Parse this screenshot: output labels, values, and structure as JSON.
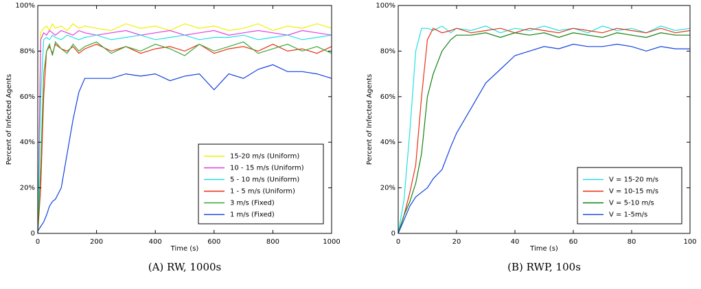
{
  "chart_data": [
    {
      "type": "line",
      "caption": "(A) RW, 1000s",
      "xlabel": "Time (s)",
      "ylabel": "Percent of Infected Agents",
      "xlim": [
        0,
        1000
      ],
      "ylim": [
        0,
        100
      ],
      "xticks": [
        0,
        200,
        400,
        600,
        800,
        1000
      ],
      "yticks": [
        0,
        {
          "value": 20,
          "label": "20%"
        },
        {
          "value": 40,
          "label": "40%"
        },
        {
          "value": 60,
          "label": "60%"
        },
        {
          "value": 80,
          "label": "80%"
        },
        {
          "value": 100,
          "label": "100%"
        }
      ],
      "legend": "lower right",
      "x": [
        0,
        10,
        20,
        30,
        40,
        50,
        60,
        80,
        100,
        120,
        140,
        160,
        200,
        250,
        300,
        350,
        400,
        450,
        500,
        550,
        600,
        650,
        700,
        750,
        800,
        850,
        900,
        950,
        1000
      ],
      "series": [
        {
          "name": "15-20 m/s (Uniform)",
          "color": "#f0f000",
          "values": [
            0,
            88,
            90,
            91,
            89,
            92,
            90,
            91,
            89,
            92,
            90,
            91,
            90,
            89,
            92,
            90,
            91,
            89,
            92,
            90,
            91,
            89,
            90,
            92,
            89,
            91,
            90,
            92,
            90
          ]
        },
        {
          "name": "10 - 15 m/s (Uniform)",
          "color": "#e040e0",
          "values": [
            0,
            85,
            88,
            87,
            89,
            88,
            87,
            89,
            88,
            87,
            89,
            88,
            87,
            88,
            89,
            87,
            88,
            89,
            87,
            88,
            89,
            87,
            88,
            89,
            88,
            87,
            89,
            88,
            87
          ]
        },
        {
          "name": "5 - 10 m/s (Uniform)",
          "color": "#20e0e0",
          "values": [
            0,
            60,
            85,
            86,
            85,
            87,
            86,
            85,
            87,
            86,
            85,
            86,
            87,
            85,
            86,
            87,
            85,
            86,
            87,
            85,
            86,
            86,
            87,
            85,
            86,
            87,
            85,
            86,
            87
          ]
        },
        {
          "name": "1 - 5 m/s (Uniform)",
          "color": "#e83010",
          "values": [
            0,
            20,
            60,
            80,
            82,
            79,
            83,
            81,
            80,
            82,
            79,
            81,
            83,
            80,
            82,
            79,
            81,
            82,
            80,
            83,
            79,
            81,
            82,
            80,
            83,
            80,
            81,
            79,
            82
          ]
        },
        {
          "name": "3 m/s (Fixed)",
          "color": "#38a838",
          "values": [
            0,
            30,
            70,
            80,
            83,
            78,
            84,
            81,
            79,
            83,
            80,
            82,
            84,
            79,
            82,
            80,
            83,
            81,
            78,
            83,
            80,
            82,
            84,
            79,
            81,
            83,
            80,
            82,
            79
          ]
        },
        {
          "name": "1 m/s (Fixed)",
          "color": "#1040e0",
          "values": [
            1,
            3,
            5,
            8,
            12,
            14,
            15,
            20,
            35,
            50,
            62,
            68,
            68,
            68,
            70,
            69,
            70,
            67,
            69,
            70,
            63,
            70,
            68,
            72,
            74,
            71,
            71,
            70,
            68
          ]
        }
      ]
    },
    {
      "type": "line",
      "caption": "(B) RWP, 100s",
      "xlabel": "Time (s)",
      "ylabel": "Percent of Infected Agents",
      "xlim": [
        0,
        100
      ],
      "ylim": [
        0,
        100
      ],
      "xticks": [
        0,
        20,
        40,
        60,
        80,
        100
      ],
      "yticks": [
        0,
        {
          "value": 20,
          "label": "20%"
        },
        {
          "value": 40,
          "label": "40%"
        },
        {
          "value": 60,
          "label": "60%"
        },
        {
          "value": 80,
          "label": "80%"
        },
        {
          "value": 100,
          "label": "100%"
        }
      ],
      "legend": "lower right",
      "x": [
        0,
        2,
        4,
        6,
        8,
        10,
        12,
        15,
        18,
        20,
        25,
        30,
        35,
        40,
        45,
        50,
        55,
        60,
        65,
        70,
        75,
        80,
        85,
        90,
        95,
        100
      ],
      "series": [
        {
          "name": "V = 15-20 m/s",
          "color": "#20e0e0",
          "values": [
            0,
            15,
            45,
            80,
            90,
            90,
            89,
            91,
            88,
            90,
            89,
            91,
            88,
            90,
            89,
            91,
            89,
            90,
            88,
            91,
            89,
            90,
            88,
            91,
            89,
            90
          ]
        },
        {
          "name": "V = 10-15 m/s",
          "color": "#e83010",
          "values": [
            0,
            8,
            18,
            30,
            60,
            85,
            90,
            88,
            89,
            90,
            88,
            89,
            90,
            88,
            90,
            89,
            88,
            90,
            89,
            88,
            90,
            89,
            88,
            90,
            88,
            89
          ]
        },
        {
          "name": "V = 5-10 m/s",
          "color": "#108010",
          "values": [
            0,
            8,
            14,
            22,
            35,
            60,
            70,
            80,
            85,
            87,
            87,
            88,
            86,
            88,
            87,
            88,
            86,
            88,
            87,
            86,
            88,
            87,
            86,
            88,
            87,
            87
          ]
        },
        {
          "name": "V = 1-5m/s",
          "color": "#1040e0",
          "values": [
            0,
            6,
            12,
            16,
            18,
            20,
            24,
            28,
            38,
            44,
            55,
            66,
            72,
            78,
            80,
            82,
            81,
            83,
            82,
            82,
            83,
            82,
            80,
            82,
            81,
            81
          ]
        }
      ]
    }
  ]
}
